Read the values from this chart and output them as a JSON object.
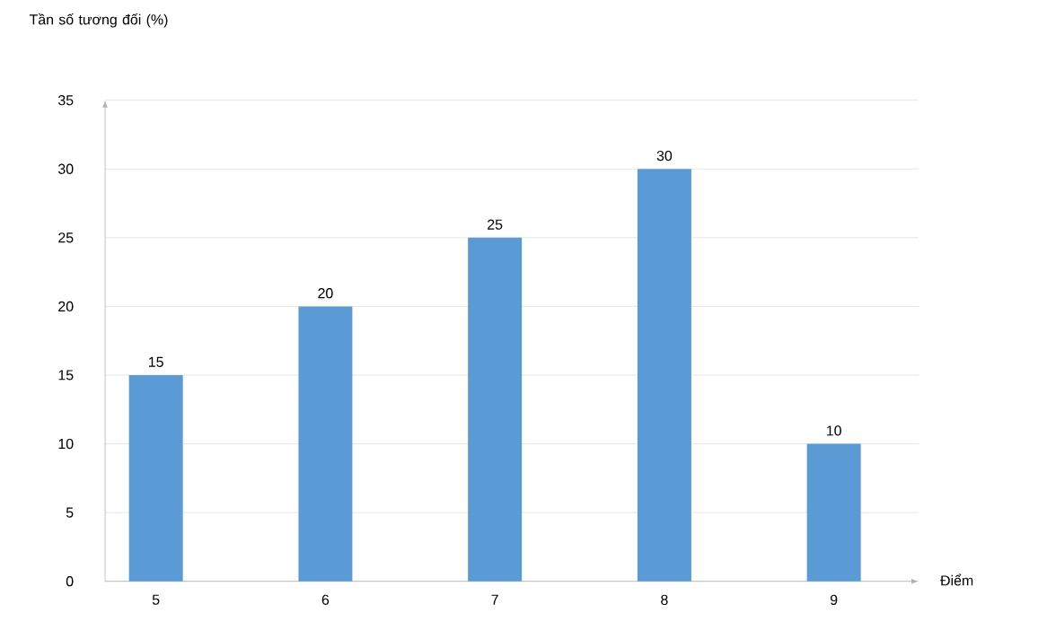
{
  "chart_data": {
    "type": "bar",
    "ylabel": "Tần số tương đối (%)",
    "xlabel": "Điểm",
    "categories": [
      "5",
      "6",
      "7",
      "8",
      "9"
    ],
    "values": [
      15,
      20,
      25,
      30,
      10
    ],
    "color": "#5b9bd5",
    "ylim": [
      0,
      35
    ],
    "yticks": [
      0,
      5,
      10,
      15,
      20,
      25,
      30,
      35
    ],
    "grid": "y",
    "data_labels": true
  }
}
